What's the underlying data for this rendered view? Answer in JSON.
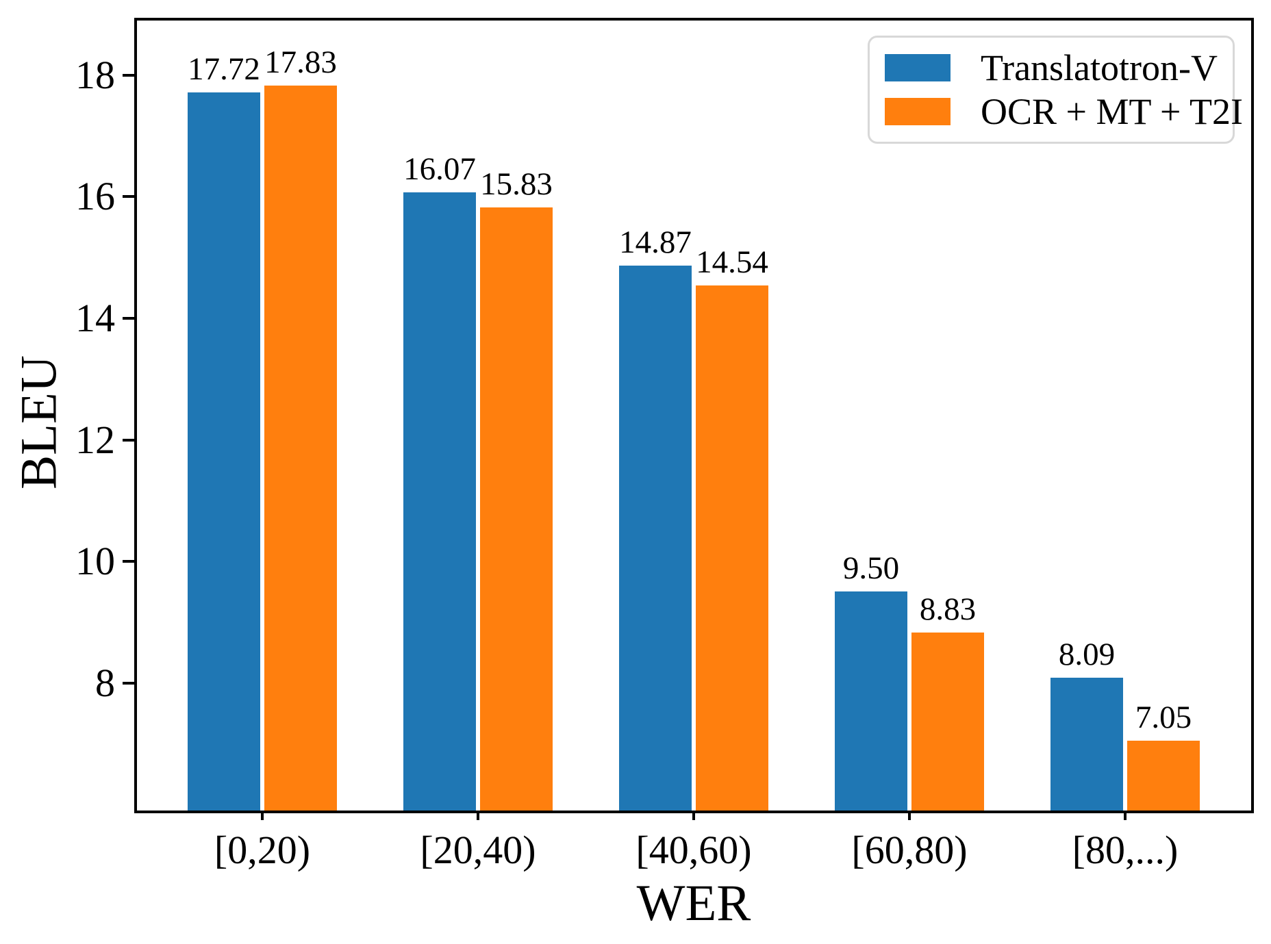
{
  "figure": {
    "background": "#ffffff",
    "axis_color": "#000000",
    "legend_border_color": "#d8d8d8"
  },
  "chart_data": {
    "type": "bar",
    "title": "",
    "xlabel": "WER",
    "ylabel": "BLEU",
    "categories": [
      "[0,20)",
      "[20,40)",
      "[40,60)",
      "[60,80)",
      "[80,...)"
    ],
    "series": [
      {
        "name": "Translatotron-V",
        "color": "#1f77b4",
        "values": [
          17.72,
          16.07,
          14.87,
          9.5,
          8.09
        ]
      },
      {
        "name": "OCR + MT + T2I",
        "color": "#ff7f0e",
        "values": [
          17.83,
          15.83,
          14.54,
          8.83,
          7.05
        ]
      }
    ],
    "value_label_format": "%.2f",
    "yticks": [
      8,
      10,
      12,
      14,
      16,
      18
    ],
    "ylim": [
      5.9,
      18.9
    ],
    "grid": false,
    "legend_position": "upper right"
  }
}
